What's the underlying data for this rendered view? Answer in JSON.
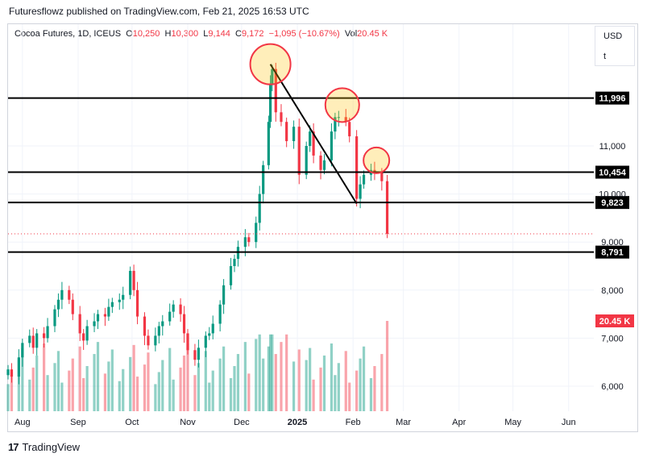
{
  "header": {
    "published": "Futuresflowz published on TradingView.com, Feb 21, 2025 16:53 UTC"
  },
  "legend": {
    "symbol": "Cocoa Futures, 1D, ICEUS",
    "open_label": "O",
    "open": "10,250",
    "high_label": "H",
    "high": "10,300",
    "low_label": "L",
    "low": "9,144",
    "close_label": "C",
    "close": "9,172",
    "change": "−1,095 (−10.67%)",
    "vol_label": "Vol",
    "vol": "20.45 K"
  },
  "scale_box": {
    "currency": "USD",
    "log_toggle": "t"
  },
  "footer": {
    "brand": "TradingView",
    "logo_icon": "tradingview-logo-icon"
  },
  "chart_data": {
    "type": "candlestick",
    "price_axis": {
      "ticks": [
        "11,000",
        "10,000",
        "9,000",
        "8,000",
        "7,000",
        "6,000"
      ],
      "tick_values": [
        11000,
        10000,
        9000,
        8000,
        7000,
        6000
      ],
      "range": [
        5600,
        12900
      ]
    },
    "time_axis": {
      "ticks": [
        "Aug",
        "Sep",
        "Oct",
        "Nov",
        "Dec",
        "2025",
        "Feb",
        "Mar",
        "Apr",
        "May",
        "Jun"
      ],
      "tick_dates": [
        "2024-08-01",
        "2024-09-01",
        "2024-10-01",
        "2024-11-01",
        "2024-12-01",
        "2025-01-01",
        "2025-02-01",
        "2025-03-01",
        "2025-04-01",
        "2025-05-01",
        "2025-06-01"
      ],
      "range": [
        "2024-07-24",
        "2025-06-15"
      ]
    },
    "horizontal_levels": [
      {
        "label": "11,996",
        "value": 11996
      },
      {
        "label": "10,454",
        "value": 10454
      },
      {
        "label": "9,823",
        "value": 9823
      },
      {
        "label": "8,791",
        "value": 8791
      }
    ],
    "last_price_line": 9172,
    "volume_label": "20.45 K",
    "trendline": {
      "from": [
        "2024-12-17",
        12700
      ],
      "to": [
        "2025-02-03",
        9800
      ]
    },
    "highlight_circles": [
      {
        "date": "2024-12-17",
        "price": 12700
      },
      {
        "date": "2025-01-26",
        "price": 11850
      },
      {
        "date": "2025-02-14",
        "price": 10700
      }
    ],
    "closes": [
      [
        "2024-07-24",
        6350
      ],
      [
        "2024-07-26",
        6200
      ],
      [
        "2024-07-30",
        6600
      ],
      [
        "2024-08-01",
        6900
      ],
      [
        "2024-08-05",
        7050
      ],
      [
        "2024-08-07",
        6800
      ],
      [
        "2024-08-09",
        7100
      ],
      [
        "2024-08-13",
        7000
      ],
      [
        "2024-08-15",
        7250
      ],
      [
        "2024-08-19",
        7600
      ],
      [
        "2024-08-21",
        7800
      ],
      [
        "2024-08-23",
        8000
      ],
      [
        "2024-08-27",
        7800
      ],
      [
        "2024-08-29",
        7500
      ],
      [
        "2024-09-02",
        7100
      ],
      [
        "2024-09-04",
        6950
      ],
      [
        "2024-09-06",
        7250
      ],
      [
        "2024-09-10",
        7350
      ],
      [
        "2024-09-12",
        7500
      ],
      [
        "2024-09-16",
        7450
      ],
      [
        "2024-09-18",
        7650
      ],
      [
        "2024-09-20",
        7750
      ],
      [
        "2024-09-24",
        7800
      ],
      [
        "2024-09-26",
        7900
      ],
      [
        "2024-09-30",
        8400
      ],
      [
        "2024-10-02",
        8000
      ],
      [
        "2024-10-04",
        7450
      ],
      [
        "2024-10-08",
        7050
      ],
      [
        "2024-10-10",
        6850
      ],
      [
        "2024-10-14",
        7050
      ],
      [
        "2024-10-16",
        7250
      ],
      [
        "2024-10-18",
        7350
      ],
      [
        "2024-10-22",
        7550
      ],
      [
        "2024-10-24",
        7700
      ],
      [
        "2024-10-28",
        7500
      ],
      [
        "2024-10-30",
        7100
      ],
      [
        "2024-11-01",
        6750
      ],
      [
        "2024-11-05",
        6550
      ],
      [
        "2024-11-07",
        6800
      ],
      [
        "2024-11-11",
        7050
      ],
      [
        "2024-11-13",
        7100
      ],
      [
        "2024-11-15",
        7300
      ],
      [
        "2024-11-19",
        7700
      ],
      [
        "2024-11-21",
        8100
      ],
      [
        "2024-11-25",
        8500
      ],
      [
        "2024-11-27",
        8650
      ],
      [
        "2024-11-29",
        8900
      ],
      [
        "2024-12-03",
        9100
      ],
      [
        "2024-12-05",
        9000
      ],
      [
        "2024-12-09",
        9400
      ],
      [
        "2024-12-11",
        10000
      ],
      [
        "2024-12-13",
        10600
      ],
      [
        "2024-12-16",
        11500
      ],
      [
        "2024-12-17",
        12300
      ],
      [
        "2024-12-18",
        12600
      ],
      [
        "2024-12-20",
        11700
      ],
      [
        "2024-12-23",
        11500
      ],
      [
        "2024-12-26",
        11100
      ],
      [
        "2024-12-30",
        11400
      ],
      [
        "2025-01-02",
        10400
      ],
      [
        "2025-01-06",
        11000
      ],
      [
        "2025-01-08",
        11300
      ],
      [
        "2025-01-10",
        10800
      ],
      [
        "2025-01-14",
        10500
      ],
      [
        "2025-01-16",
        10700
      ],
      [
        "2025-01-20",
        11300
      ],
      [
        "2025-01-22",
        11600
      ],
      [
        "2025-01-24",
        11600
      ],
      [
        "2025-01-28",
        11500
      ],
      [
        "2025-01-30",
        11200
      ],
      [
        "2025-02-03",
        9900
      ],
      [
        "2025-02-05",
        10200
      ],
      [
        "2025-02-07",
        10400
      ],
      [
        "2025-02-11",
        10500
      ],
      [
        "2025-02-13",
        10450
      ],
      [
        "2025-02-17",
        10267
      ],
      [
        "2025-02-20",
        9172
      ]
    ]
  }
}
